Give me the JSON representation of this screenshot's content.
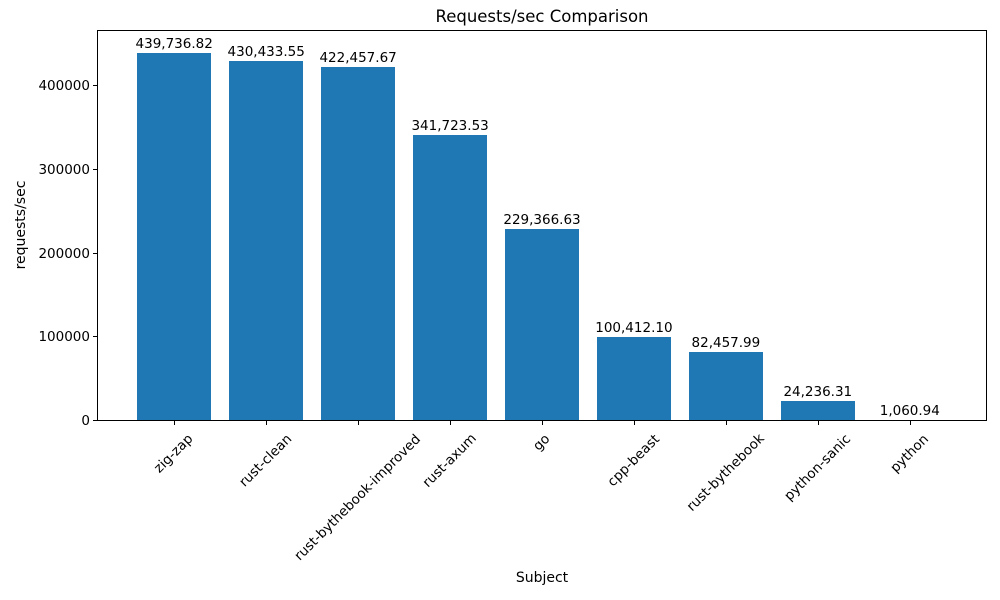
{
  "chart_data": {
    "type": "bar",
    "title": "Requests/sec Comparison",
    "xlabel": "Subject",
    "ylabel": "requests/sec",
    "categories": [
      "zig-zap",
      "rust-clean",
      "rust-bythebook-improved",
      "rust-axum",
      "go",
      "cpp-beast",
      "rust-bythebook",
      "python-sanic",
      "python"
    ],
    "values": [
      439736.82,
      430433.55,
      422457.67,
      341723.53,
      229366.63,
      100412.1,
      82457.99,
      24236.31,
      1060.94
    ],
    "value_labels": [
      "439,736.82",
      "430,433.55",
      "422,457.67",
      "341,723.53",
      "229,366.63",
      "100,412.10",
      "82,457.99",
      "24,236.31",
      "1,060.94"
    ],
    "yticks": [
      0,
      100000,
      200000,
      300000,
      400000
    ],
    "ytick_labels": [
      "0",
      "100000",
      "200000",
      "300000",
      "400000"
    ],
    "ylim": [
      0,
      467000
    ],
    "bar_color": "#1f77b4",
    "text_color": "#000000",
    "grid": false,
    "legend": null,
    "x_tick_rotation": 45
  }
}
